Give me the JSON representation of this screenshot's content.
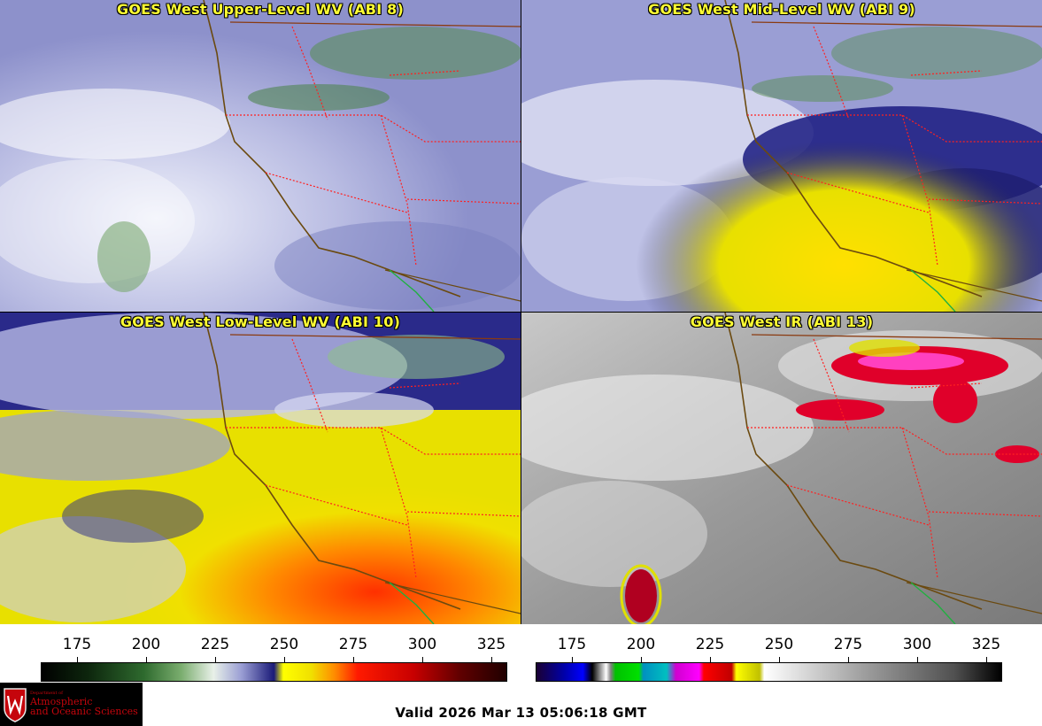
{
  "panels": [
    {
      "title": "GOES West Upper-Level WV (ABI 8)"
    },
    {
      "title": "GOES West Mid-Level WV (ABI 9)"
    },
    {
      "title": "GOES West Low-Level WV (ABI 10)"
    },
    {
      "title": "GOES West IR (ABI 13)"
    }
  ],
  "colorbar_left": {
    "ticks": [
      "175",
      "200",
      "225",
      "250",
      "275",
      "300",
      "325"
    ]
  },
  "colorbar_right": {
    "ticks": [
      "175",
      "200",
      "225",
      "250",
      "275",
      "300",
      "325"
    ]
  },
  "logo": {
    "line1": "Department of",
    "line2": "Atmospheric",
    "line3": "and Oceanic Sciences"
  },
  "valid_time": "Valid 2026 Mar 13 05:06:18 GMT",
  "colors": {
    "title": "#ffff33",
    "state_border": "#ff2020",
    "coast": "#6b4a10"
  }
}
